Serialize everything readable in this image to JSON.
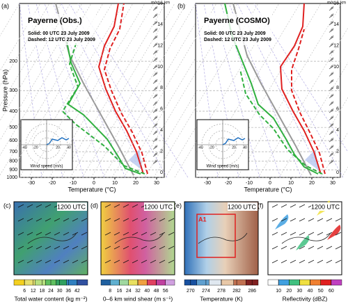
{
  "panels_top": [
    {
      "label": "(a)",
      "station": "Payerne (Obs.)",
      "solid": "Solid:    00 UTC 23 July 2009",
      "dashed": "Dashed: 12 UTC 23 July 2009"
    },
    {
      "label": "(b)",
      "station": "Payerne (COSMO)",
      "solid": "Solid:    00 UTC 23 July 2009",
      "dashed": "Dashed: 12 UTC 23 July 2009"
    }
  ],
  "pressure_axis": {
    "title": "Pressure (hPa)",
    "ticks": [
      200,
      300,
      400,
      500,
      600,
      700,
      800,
      900,
      1000
    ]
  },
  "temperature_axis": {
    "title": "Temperature (°C)",
    "ticks": [
      -30,
      -20,
      -10,
      0,
      10,
      20,
      30
    ]
  },
  "height_axis": {
    "unit": "km",
    "ticks": [
      0,
      2,
      4,
      6,
      8,
      10,
      12,
      14,
      16
    ]
  },
  "wind_unit": "m/s",
  "hodograph": {
    "title": "Wind speed (m/s)",
    "ticks": [
      -40,
      -20,
      20,
      40
    ]
  },
  "maps": [
    {
      "label": "(c)",
      "time": "1200 UTC",
      "colorbar_title": "Total water content (kg m⁻²)",
      "ticks": [
        6,
        12,
        18,
        24,
        30,
        36,
        42
      ],
      "colors": [
        "#f4d020",
        "#e8e070",
        "#b8e080",
        "#60c060",
        "#30a060",
        "#3080c0",
        "#3050a0"
      ]
    },
    {
      "label": "(d)",
      "time": "1200 UTC",
      "colorbar_title": "0–6 km wind shear (m s⁻¹)",
      "ticks": [
        8,
        16,
        24,
        32,
        40,
        48,
        56
      ],
      "colors": [
        "#2060a0",
        "#60b0d0",
        "#a0d8a0",
        "#e8e060",
        "#f0a040",
        "#e04060",
        "#c040a0",
        "#d0a0e0"
      ]
    },
    {
      "label": "(e)",
      "time": "1200 UTC",
      "colorbar_title": "Temperature (K)",
      "ticks": [
        270,
        274,
        278,
        282,
        286
      ],
      "colors": [
        "#1850a0",
        "#60a0d0",
        "#e0e8f0",
        "#e8c8a8",
        "#c07050",
        "#802020"
      ],
      "box_label": "A1"
    },
    {
      "label": "(f)",
      "time": "1200 UTC",
      "colorbar_title": "Reflectivity (dBZ)",
      "ticks": [
        10,
        20,
        30,
        40,
        50,
        60
      ],
      "colors": [
        "#ffffff",
        "#40a0e0",
        "#40c080",
        "#f0e040",
        "#f08030",
        "#e02020",
        "#c040c0"
      ]
    }
  ]
}
